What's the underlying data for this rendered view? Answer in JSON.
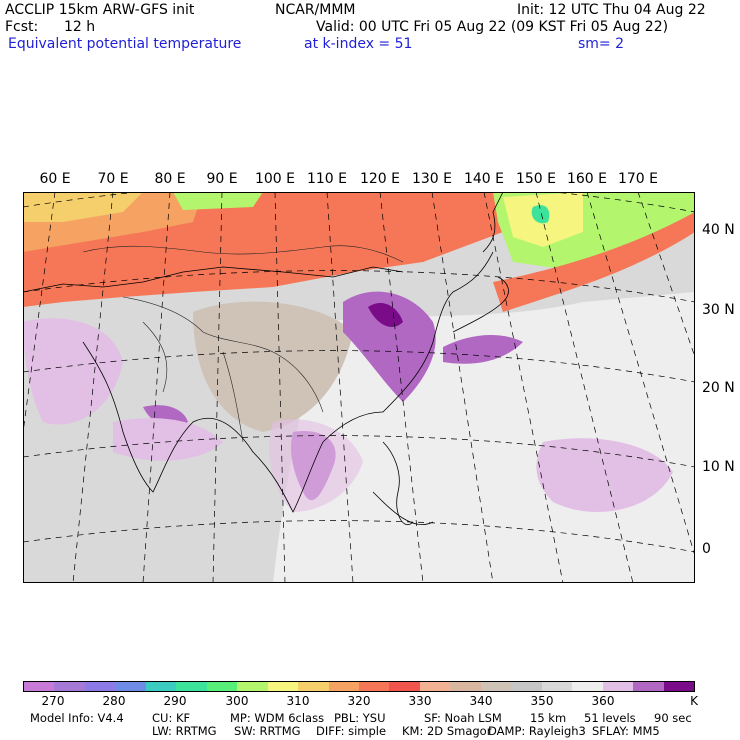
{
  "header": {
    "model": "ACCLIP 15km ARW-GFS init",
    "center": "NCAR/MMM",
    "init": "Init: 12 UTC Thu 04 Aug 22",
    "fcst_label": "Fcst:",
    "fcst_value": "12 h",
    "valid": "Valid: 00 UTC Fri 05 Aug 22 (09 KST Fri 05 Aug 22)",
    "field": "Equivalent potential temperature",
    "level": "at k-index =  51",
    "smooth": "sm= 2"
  },
  "map": {
    "lon_labels": [
      "60 E",
      "70 E",
      "80 E",
      "90 E",
      "100 E",
      "110 E",
      "120 E",
      "130 E",
      "140 E",
      "150 E",
      "160 E",
      "170 E"
    ],
    "lat_labels": [
      "40 N",
      "30 N",
      "20 N",
      "10 N",
      "0"
    ]
  },
  "colorbar": {
    "unit": "K",
    "ticks": [
      "270",
      "280",
      "290",
      "300",
      "310",
      "320",
      "330",
      "340",
      "350",
      "360"
    ],
    "colors": [
      "#c77ad6",
      "#a47ad6",
      "#8c7ae6",
      "#6e8ce6",
      "#3ccbc0",
      "#3de39a",
      "#57ef7a",
      "#b4f56e",
      "#f5f580",
      "#f5cf6b",
      "#f5a262",
      "#f57757",
      "#f0564e",
      "#f2b192",
      "#d9b6a0",
      "#cfc3b8",
      "#c6c6c6",
      "#d9d9d9",
      "#eeeeee",
      "#e2bfe5",
      "#b168c2",
      "#7a0c8a"
    ]
  },
  "footer": {
    "line1": [
      "Model Info: V4.4",
      "CU: KF",
      "MP: WDM 6class",
      "PBL: YSU",
      "SF: Noah LSM",
      "15 km",
      "51 levels",
      "90 sec"
    ],
    "line2": [
      "LW: RRTMG",
      "SW: RRTMG",
      "DIFF: simple",
      "KM: 2D Smagor",
      "DAMP: Rayleigh3",
      "SFLAY: MM5"
    ]
  }
}
